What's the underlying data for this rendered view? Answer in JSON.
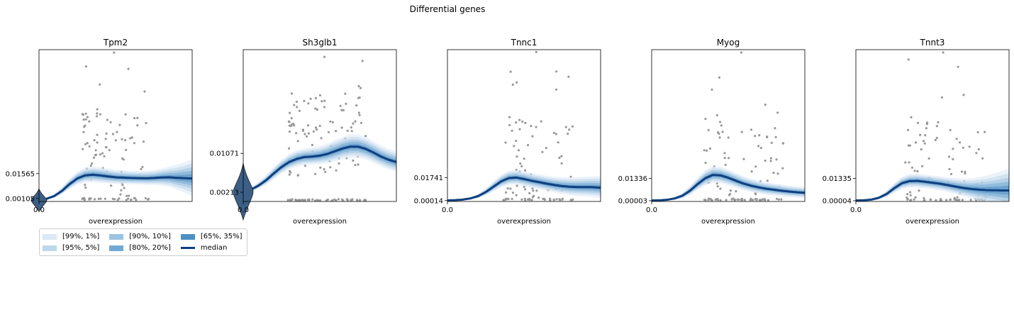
{
  "figure": {
    "title": "Differential genes"
  },
  "colors": {
    "band_99_1": "#dbe8f5",
    "band_95_5": "#bdd7eb",
    "band_90_10": "#9cc3e0",
    "band_80_20": "#72a9d2",
    "band_65_35": "#4d8fc4",
    "median": "#0f3f7f",
    "points": "#999999"
  },
  "legend": {
    "items": [
      {
        "label": "[99%, 1%]",
        "color_key": "band_99_1",
        "kind": "band"
      },
      {
        "label": "[95%, 5%]",
        "color_key": "band_95_5",
        "kind": "band"
      },
      {
        "label": "[90%, 10%]",
        "color_key": "band_90_10",
        "kind": "band"
      },
      {
        "label": "[80%, 20%]",
        "color_key": "band_80_20",
        "kind": "band"
      },
      {
        "label": "[65%, 35%]",
        "color_key": "band_65_35",
        "kind": "band"
      },
      {
        "label": "median",
        "color_key": "median",
        "kind": "line"
      }
    ]
  },
  "chart_data": [
    {
      "type": "line",
      "title": "Tpm2",
      "xlabel": "overexpression",
      "xtick_label": "0.0",
      "ytick_labels": [
        "0.01565",
        "0.00105"
      ],
      "ytick_values": [
        0.01565,
        0.00105
      ],
      "ylim": [
        -0.0007,
        0.0885
      ],
      "has_violin": true,
      "median": {
        "x": [
          0.0,
          0.05,
          0.1,
          0.15,
          0.2,
          0.25,
          0.3,
          0.35,
          0.4,
          0.45,
          0.5,
          0.55,
          0.6,
          0.65,
          0.7,
          0.75,
          0.8,
          0.85,
          0.9,
          0.95,
          1.0
        ],
        "y": [
          0.0001,
          0.0009,
          0.0025,
          0.0055,
          0.0095,
          0.0128,
          0.0146,
          0.015,
          0.0146,
          0.014,
          0.0135,
          0.0133,
          0.0131,
          0.013,
          0.0129,
          0.0131,
          0.0134,
          0.0135,
          0.0132,
          0.013,
          0.0128
        ]
      },
      "band_halfwidth": [
        0.0002,
        0.0005,
        0.0012,
        0.0022,
        0.0032,
        0.004,
        0.0046,
        0.0048,
        0.0048,
        0.0046,
        0.0044,
        0.0043,
        0.0042,
        0.0042,
        0.0043,
        0.0046,
        0.0052,
        0.0062,
        0.0076,
        0.0094,
        0.0115
      ],
      "point_seed": 11,
      "point_count": 110,
      "point_xrange": [
        0.2,
        0.72
      ],
      "point_ymax": 0.0868
    },
    {
      "type": "line",
      "title": "Sh3glb1",
      "xlabel": "overexpression",
      "xtick_label": "0.0",
      "ytick_labels": [
        "0.01071",
        "0.00213"
      ],
      "ytick_values": [
        0.01071,
        0.00213
      ],
      "ylim": [
        0.0001,
        0.0336
      ],
      "has_violin": true,
      "median": {
        "x": [
          0.0,
          0.05,
          0.1,
          0.15,
          0.2,
          0.25,
          0.3,
          0.35,
          0.4,
          0.45,
          0.5,
          0.55,
          0.6,
          0.65,
          0.7,
          0.75,
          0.8,
          0.85,
          0.9,
          0.95,
          1.0
        ],
        "y": [
          0.0023,
          0.0027,
          0.0036,
          0.0048,
          0.0063,
          0.0077,
          0.0088,
          0.0095,
          0.0099,
          0.01,
          0.0102,
          0.0106,
          0.0112,
          0.0118,
          0.0122,
          0.0122,
          0.0117,
          0.0109,
          0.01,
          0.0093,
          0.0088
        ]
      },
      "band_halfwidth": [
        0.0003,
        0.0005,
        0.0008,
        0.0011,
        0.0014,
        0.0016,
        0.0018,
        0.0019,
        0.0019,
        0.002,
        0.0021,
        0.0023,
        0.0025,
        0.0026,
        0.0027,
        0.0027,
        0.0026,
        0.0025,
        0.0024,
        0.0024,
        0.0024
      ],
      "point_seed": 23,
      "point_count": 160,
      "point_xrange": [
        0.2,
        0.8
      ],
      "point_ymax": 0.032
    },
    {
      "type": "line",
      "title": "Tnnc1",
      "xlabel": "overexpression",
      "xtick_label": "0.0",
      "ytick_labels": [
        "0.01741",
        "0.00014"
      ],
      "ytick_values": [
        0.01741,
        0.00014
      ],
      "ylim": [
        -0.0005,
        0.1133
      ],
      "has_violin": false,
      "median": {
        "x": [
          0.0,
          0.05,
          0.1,
          0.15,
          0.2,
          0.25,
          0.3,
          0.35,
          0.4,
          0.45,
          0.5,
          0.55,
          0.6,
          0.65,
          0.7,
          0.75,
          0.8,
          0.85,
          0.9,
          0.95,
          1.0
        ],
        "y": [
          0.0003,
          0.0005,
          0.0009,
          0.0018,
          0.0035,
          0.0065,
          0.0105,
          0.0145,
          0.017,
          0.0174,
          0.0163,
          0.015,
          0.0139,
          0.0128,
          0.0118,
          0.011,
          0.0105,
          0.0103,
          0.0103,
          0.0102,
          0.0098
        ]
      },
      "band_halfwidth": [
        0.0002,
        0.0003,
        0.0005,
        0.001,
        0.0018,
        0.0028,
        0.004,
        0.005,
        0.0056,
        0.0058,
        0.0058,
        0.0058,
        0.0059,
        0.006,
        0.0062,
        0.0066,
        0.007,
        0.0074,
        0.0078,
        0.0082,
        0.0086
      ],
      "point_seed": 37,
      "point_count": 100,
      "point_xrange": [
        0.28,
        0.82
      ],
      "point_ymax": 0.1115
    },
    {
      "type": "line",
      "title": "Myog",
      "xlabel": "overexpression",
      "xtick_label": "0.0",
      "ytick_labels": [
        "0.01336",
        "0.00003"
      ],
      "ytick_values": [
        0.01336,
        3e-05
      ],
      "ylim": [
        -0.0004,
        0.0905
      ],
      "has_violin": false,
      "median": {
        "x": [
          0.0,
          0.05,
          0.1,
          0.15,
          0.2,
          0.25,
          0.3,
          0.35,
          0.4,
          0.45,
          0.5,
          0.55,
          0.6,
          0.65,
          0.7,
          0.75,
          0.8,
          0.85,
          0.9,
          0.95,
          1.0
        ],
        "y": [
          0.0002,
          0.0003,
          0.0006,
          0.0014,
          0.003,
          0.006,
          0.01,
          0.0135,
          0.0155,
          0.0152,
          0.0138,
          0.012,
          0.0103,
          0.009,
          0.008,
          0.0072,
          0.0066,
          0.006,
          0.0055,
          0.0051,
          0.0048
        ]
      },
      "band_halfwidth": [
        0.0002,
        0.0003,
        0.0005,
        0.001,
        0.0018,
        0.0028,
        0.004,
        0.0048,
        0.0052,
        0.0052,
        0.005,
        0.0047,
        0.0044,
        0.0042,
        0.004,
        0.0039,
        0.0038,
        0.0037,
        0.0036,
        0.0035,
        0.0034
      ],
      "point_seed": 53,
      "point_count": 110,
      "point_xrange": [
        0.25,
        0.86
      ],
      "point_ymax": 0.0888
    },
    {
      "type": "line",
      "title": "Tnnt3",
      "xlabel": "overexpression",
      "xtick_label": "0.0",
      "ytick_labels": [
        "0.01335",
        "0.00004"
      ],
      "ytick_values": [
        0.01335,
        4e-05
      ],
      "ylim": [
        -0.0004,
        0.0905
      ],
      "has_violin": false,
      "median": {
        "x": [
          0.0,
          0.05,
          0.1,
          0.15,
          0.2,
          0.25,
          0.3,
          0.35,
          0.4,
          0.45,
          0.5,
          0.55,
          0.6,
          0.65,
          0.7,
          0.75,
          0.8,
          0.85,
          0.9,
          0.95,
          1.0
        ],
        "y": [
          0.0002,
          0.0003,
          0.0007,
          0.0018,
          0.004,
          0.0075,
          0.0105,
          0.0118,
          0.0119,
          0.0114,
          0.0108,
          0.0102,
          0.0094,
          0.0085,
          0.0077,
          0.0071,
          0.0067,
          0.0064,
          0.0063,
          0.0062,
          0.0062
        ]
      },
      "band_halfwidth": [
        0.0002,
        0.0003,
        0.0006,
        0.0012,
        0.002,
        0.003,
        0.0038,
        0.0042,
        0.0043,
        0.0043,
        0.0043,
        0.0044,
        0.0046,
        0.005,
        0.0056,
        0.0064,
        0.0074,
        0.0086,
        0.01,
        0.0116,
        0.0132
      ],
      "point_seed": 71,
      "point_count": 100,
      "point_xrange": [
        0.22,
        0.86
      ],
      "point_ymax": 0.0888
    }
  ]
}
